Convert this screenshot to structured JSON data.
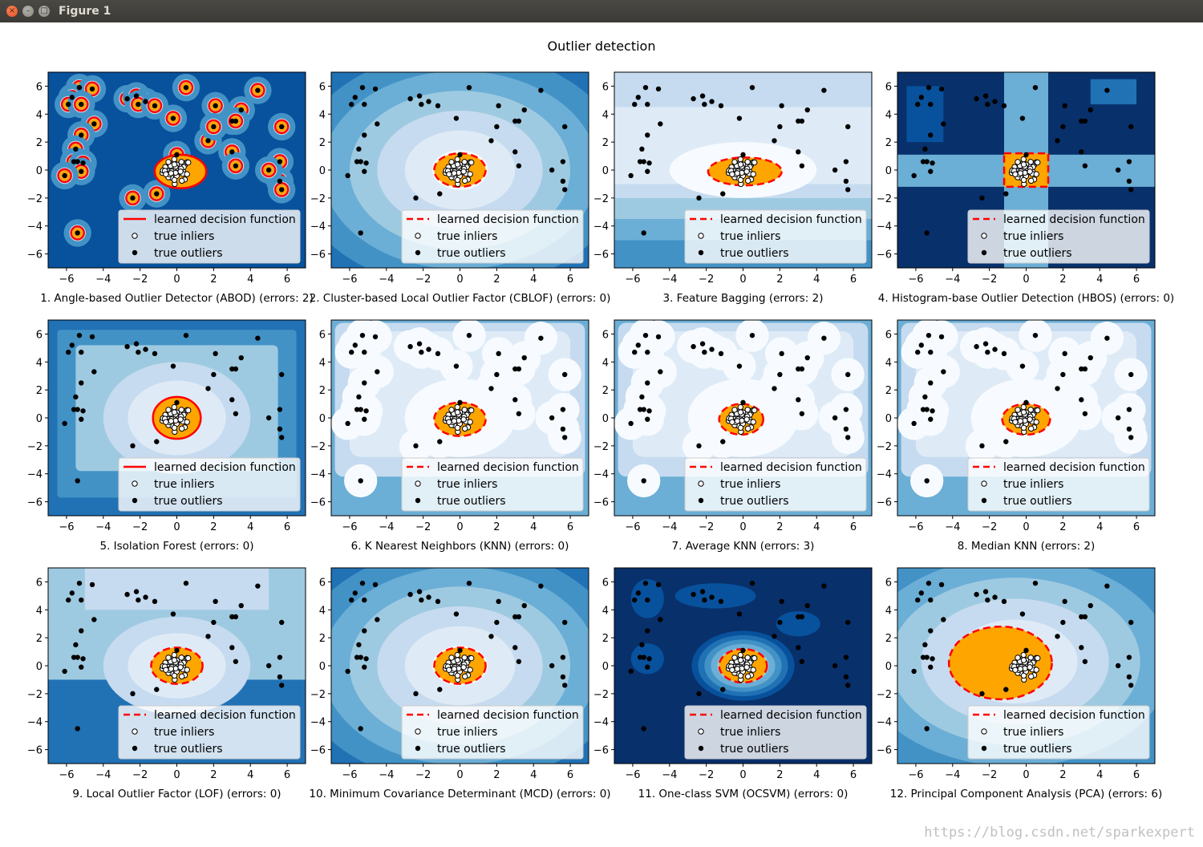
{
  "window": {
    "title": "Figure 1",
    "close_glyph": "×",
    "min_glyph": "–",
    "max_glyph": "□"
  },
  "watermark": "https://blog.csdn.net/sparkexpert",
  "colors": {
    "inlier_fill": "#ffffff",
    "outlier_fill": "#000000",
    "decision_region": "#ffa500",
    "decision_line": "#ff0000",
    "contour_palette": [
      "#08306b",
      "#08519c",
      "#2171b5",
      "#4292c6",
      "#6baed6",
      "#9ecae1",
      "#c6dbef",
      "#deebf7",
      "#f7fbff"
    ]
  },
  "chart_data": {
    "type": "scatter",
    "title": "Outlier detection",
    "xlim": [
      -7,
      7
    ],
    "ylim": [
      -7,
      7
    ],
    "xticks": [
      -6,
      -4,
      -2,
      0,
      2,
      4,
      6
    ],
    "yticks": [
      -6,
      -4,
      -2,
      0,
      2,
      4,
      6
    ],
    "legend": {
      "placement": "lower right",
      "entries": [
        "learned decision function",
        "true inliers",
        "true outliers"
      ]
    },
    "outliers": [
      [
        -5.3,
        5.9
      ],
      [
        -5.7,
        5.2
      ],
      [
        -4.6,
        5.8
      ],
      [
        -5.9,
        4.7
      ],
      [
        -5.2,
        4.7
      ],
      [
        -4.5,
        3.3
      ],
      [
        -5.2,
        2.5
      ],
      [
        -5.5,
        1.5
      ],
      [
        -5.4,
        0.6
      ],
      [
        -5.6,
        0.6
      ],
      [
        -5.1,
        0.5
      ],
      [
        -5.2,
        -0.1
      ],
      [
        -6.1,
        -0.4
      ],
      [
        -5.4,
        -4.5
      ],
      [
        -2.7,
        5.1
      ],
      [
        -2.2,
        5.3
      ],
      [
        -1.7,
        4.9
      ],
      [
        -2.1,
        4.7
      ],
      [
        -1.2,
        4.6
      ],
      [
        -0.2,
        3.7
      ],
      [
        0.5,
        5.9
      ],
      [
        2.1,
        4.6
      ],
      [
        3.5,
        4.3
      ],
      [
        4.4,
        5.7
      ],
      [
        3.0,
        3.5
      ],
      [
        3.2,
        3.5
      ],
      [
        1.7,
        2.1
      ],
      [
        3.0,
        1.3
      ],
      [
        2.0,
        3.1
      ],
      [
        5.7,
        3.1
      ],
      [
        5.6,
        0.6
      ],
      [
        5.6,
        -0.8
      ],
      [
        5.7,
        -1.4
      ],
      [
        3.2,
        0.3
      ],
      [
        5.0,
        0.0
      ],
      [
        -2.4,
        -2.0
      ],
      [
        -1.1,
        -1.7
      ],
      [
        0.0,
        1.1
      ]
    ],
    "inliers_count": 50,
    "subplots": [
      {
        "label": "1. Angle-based Outlier Detector (ABOD) (errors: 2)",
        "background": "abod",
        "decision": {
          "cx": 0.2,
          "cy": -0.1,
          "rx": 1.4,
          "ry": 1.2
        },
        "line_style": "solid"
      },
      {
        "label": "2. Cluster-based Local Outlier Factor (CBLOF) (errors: 0)",
        "background": "elliptic",
        "decision": {
          "cx": 0.0,
          "cy": 0.0,
          "rx": 1.4,
          "ry": 1.2
        },
        "line_style": "dashed"
      },
      {
        "label": "3. Feature Bagging (errors: 2)",
        "background": "banded",
        "decision": {
          "cx": 0.1,
          "cy": -0.1,
          "rx": 2.0,
          "ry": 1.0
        },
        "line_style": "dashed"
      },
      {
        "label": "4. Histogram-base Outlier Detection (HBOS) (errors: 0)",
        "background": "cross",
        "decision": {
          "cx": 0.0,
          "cy": 0.0,
          "rx": 1.2,
          "ry": 1.2,
          "rect": true
        },
        "line_style": "dashed"
      },
      {
        "label": "5. Isolation Forest (errors: 0)",
        "background": "forest",
        "decision": {
          "cx": 0.0,
          "cy": 0.0,
          "rx": 1.3,
          "ry": 1.5
        },
        "line_style": "solid"
      },
      {
        "label": "6. K Nearest Neighbors (KNN) (errors: 0)",
        "background": "knn",
        "decision": {
          "cx": 0.0,
          "cy": -0.1,
          "rx": 1.4,
          "ry": 1.2
        },
        "line_style": "dashed"
      },
      {
        "label": "7. Average KNN (errors: 3)",
        "background": "knn",
        "decision": {
          "cx": -0.1,
          "cy": -0.1,
          "rx": 1.2,
          "ry": 1.1
        },
        "line_style": "dashed"
      },
      {
        "label": "8. Median KNN (errors: 2)",
        "background": "knn",
        "decision": {
          "cx": 0.0,
          "cy": -0.1,
          "rx": 1.3,
          "ry": 1.1
        },
        "line_style": "dashed"
      },
      {
        "label": "9. Local Outlier Factor (LOF) (errors: 0)",
        "background": "lof",
        "decision": {
          "cx": 0.0,
          "cy": 0.0,
          "rx": 1.4,
          "ry": 1.3
        },
        "line_style": "dashed"
      },
      {
        "label": "10. Minimum Covariance Determinant (MCD) (errors: 0)",
        "background": "elliptic",
        "decision": {
          "cx": 0.0,
          "cy": 0.0,
          "rx": 1.4,
          "ry": 1.3
        },
        "line_style": "dashed"
      },
      {
        "label": "11. One-class SVM (OCSVM) (errors: 0)",
        "background": "ocsvm",
        "decision": {
          "cx": 0.0,
          "cy": 0.0,
          "rx": 1.3,
          "ry": 1.2
        },
        "line_style": "dashed"
      },
      {
        "label": "12. Principal Component Analysis (PCA) (errors: 6)",
        "background": "pca",
        "decision": {
          "cx": -1.4,
          "cy": 0.2,
          "rx": 2.8,
          "ry": 2.6
        },
        "line_style": "dashed"
      }
    ]
  }
}
